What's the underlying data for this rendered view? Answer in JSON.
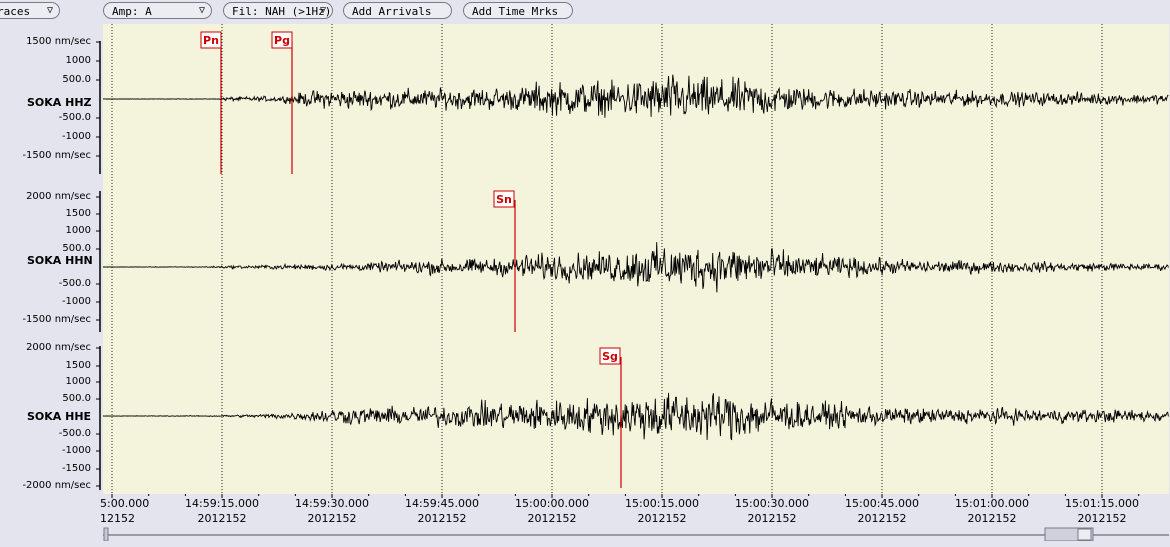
{
  "toolbar": {
    "traces_label": "races",
    "amp_label": "Amp: A",
    "filter_label": "Fil: NAH (>1Hz)",
    "add_arrivals_label": "Add Arrivals",
    "add_time_marks_label": "Add Time Mrks"
  },
  "traces": [
    {
      "station": "SOKA HHZ",
      "ticks": [
        "1500 nm/sec",
        "1000",
        "500.0",
        "-500.0",
        "-1000",
        "-1500 nm/sec"
      ]
    },
    {
      "station": "SOKA HHN",
      "ticks": [
        "2000 nm/sec",
        "1500",
        "1000",
        "500.0",
        "-500.0",
        "-1000",
        "-1500 nm/sec"
      ]
    },
    {
      "station": "SOKA HHE",
      "ticks": [
        "2000 nm/sec",
        "1500",
        "1000",
        "500.0",
        "-500.0",
        "-1000",
        "-1500",
        "-2000 nm/sec"
      ]
    }
  ],
  "phase_picks": [
    {
      "label": "Pn",
      "trace": 0
    },
    {
      "label": "Pg",
      "trace": 0
    },
    {
      "label": "Sn",
      "trace": 1
    },
    {
      "label": "Sg",
      "trace": 2
    }
  ],
  "time_axis": {
    "labels": [
      "5:00.000",
      "14:59:15.000",
      "14:59:30.000",
      "14:59:45.000",
      "15:00:00.000",
      "15:00:15.000",
      "15:00:30.000",
      "15:00:45.000",
      "15:01:00.000",
      "15:01:15.000"
    ],
    "dates": [
      "12152",
      "2012152",
      "2012152",
      "2012152",
      "2012152",
      "2012152",
      "2012152",
      "2012152",
      "2012152",
      "2012152"
    ]
  },
  "colors": {
    "plot_background": "#f4f3dc",
    "pick_color": "#cc0000",
    "trace_color": "#000000",
    "window_background": "#e4e4ef"
  }
}
